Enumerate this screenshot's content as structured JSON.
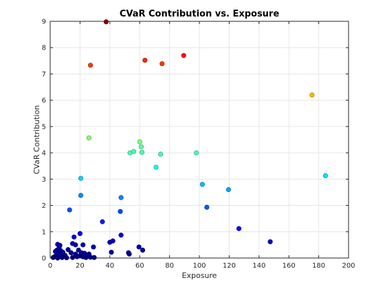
{
  "chart_data": {
    "type": "scatter",
    "title": "CVaR Contribution vs. Exposure",
    "xlabel": "Exposure",
    "ylabel": "CVaR Contribution",
    "xlim": [
      0,
      200
    ],
    "ylim": [
      0,
      9
    ],
    "xticks": [
      "0",
      "20",
      "40",
      "60",
      "80",
      "100",
      "120",
      "140",
      "160",
      "180",
      "200"
    ],
    "yticks": [
      "0",
      "1",
      "2",
      "3",
      "4",
      "5",
      "6",
      "7",
      "8",
      "9"
    ],
    "grid": true,
    "colormap": "jet",
    "color_by": "y",
    "points": [
      {
        "x": 2,
        "y": 0.02
      },
      {
        "x": 3,
        "y": 0.05
      },
      {
        "x": 3.5,
        "y": 0.25
      },
      {
        "x": 4,
        "y": 0.1
      },
      {
        "x": 4.5,
        "y": 0.3
      },
      {
        "x": 5,
        "y": 0.52
      },
      {
        "x": 5,
        "y": 0.0
      },
      {
        "x": 5.5,
        "y": 0.18
      },
      {
        "x": 6,
        "y": 0.38
      },
      {
        "x": 6,
        "y": 0.08
      },
      {
        "x": 6.5,
        "y": 0.48
      },
      {
        "x": 7,
        "y": 0.28
      },
      {
        "x": 7,
        "y": 0.05
      },
      {
        "x": 7.5,
        "y": 0.15
      },
      {
        "x": 8,
        "y": 0.02
      },
      {
        "x": 8.5,
        "y": 0.22
      },
      {
        "x": 9,
        "y": 0.06
      },
      {
        "x": 10,
        "y": 0.1
      },
      {
        "x": 11,
        "y": 0.01
      },
      {
        "x": 12,
        "y": 0.32
      },
      {
        "x": 13,
        "y": 1.83
      },
      {
        "x": 14,
        "y": 0.2
      },
      {
        "x": 15,
        "y": 0.55
      },
      {
        "x": 15,
        "y": 0.02
      },
      {
        "x": 16,
        "y": 0.8
      },
      {
        "x": 17,
        "y": 0.5
      },
      {
        "x": 17,
        "y": 0.15
      },
      {
        "x": 18,
        "y": 0.05
      },
      {
        "x": 19,
        "y": 0.3
      },
      {
        "x": 19.5,
        "y": 0.08
      },
      {
        "x": 20,
        "y": 0.93
      },
      {
        "x": 20.5,
        "y": 3.03
      },
      {
        "x": 20.5,
        "y": 2.38
      },
      {
        "x": 21,
        "y": 0.2
      },
      {
        "x": 22,
        "y": 0.5
      },
      {
        "x": 22,
        "y": 0.05
      },
      {
        "x": 23,
        "y": 0.18
      },
      {
        "x": 24,
        "y": 0.02
      },
      {
        "x": 25,
        "y": 0.1
      },
      {
        "x": 26,
        "y": 4.57
      },
      {
        "x": 26,
        "y": 0.15
      },
      {
        "x": 27,
        "y": 7.33
      },
      {
        "x": 27,
        "y": 0.03
      },
      {
        "x": 29,
        "y": 0.42
      },
      {
        "x": 29.5,
        "y": 0.02
      },
      {
        "x": 35,
        "y": 1.38
      },
      {
        "x": 37.5,
        "y": 8.98
      },
      {
        "x": 40,
        "y": 0.6
      },
      {
        "x": 41,
        "y": 0.22
      },
      {
        "x": 42,
        "y": 0.65
      },
      {
        "x": 47,
        "y": 1.77
      },
      {
        "x": 47.5,
        "y": 2.3
      },
      {
        "x": 47.5,
        "y": 0.87
      },
      {
        "x": 52.5,
        "y": 0.2
      },
      {
        "x": 53,
        "y": 0.15
      },
      {
        "x": 53.5,
        "y": 4.0
      },
      {
        "x": 56,
        "y": 4.05
      },
      {
        "x": 59.5,
        "y": 0.42
      },
      {
        "x": 60,
        "y": 4.42
      },
      {
        "x": 61,
        "y": 4.23
      },
      {
        "x": 61.5,
        "y": 4.02
      },
      {
        "x": 62,
        "y": 0.3
      },
      {
        "x": 63.5,
        "y": 7.52
      },
      {
        "x": 71,
        "y": 3.45
      },
      {
        "x": 74,
        "y": 3.95
      },
      {
        "x": 75,
        "y": 7.39
      },
      {
        "x": 89.5,
        "y": 7.7
      },
      {
        "x": 98,
        "y": 4.0
      },
      {
        "x": 102,
        "y": 2.8
      },
      {
        "x": 105,
        "y": 1.93
      },
      {
        "x": 119.5,
        "y": 2.6
      },
      {
        "x": 126.5,
        "y": 1.12
      },
      {
        "x": 147.5,
        "y": 0.62
      },
      {
        "x": 175.5,
        "y": 6.2
      },
      {
        "x": 184.5,
        "y": 3.13
      }
    ]
  }
}
